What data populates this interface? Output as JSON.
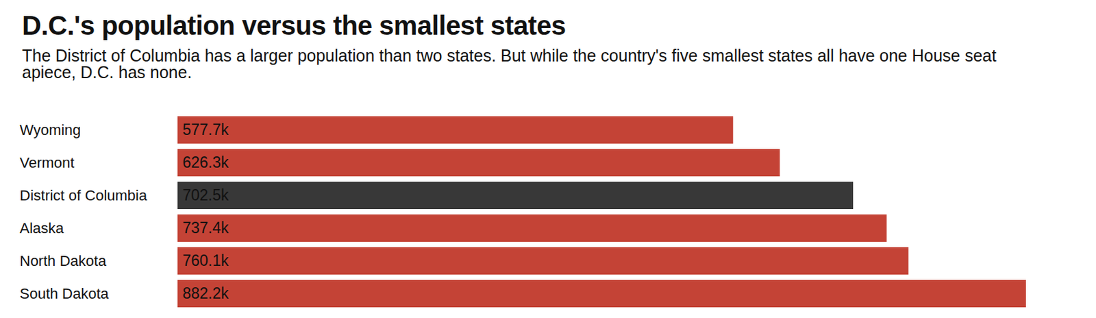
{
  "chart_data": {
    "type": "bar",
    "orientation": "horizontal",
    "title": "D.C.'s population versus the smallest states",
    "subtitle": "The District of Columbia has a larger population than two states. But while the country's five smallest states all have one House seat apiece, D.C. has none.",
    "categories": [
      "Wyoming",
      "Vermont",
      "District of Columbia",
      "Alaska",
      "North Dakota",
      "South Dakota"
    ],
    "values": [
      577.7,
      626.3,
      702.5,
      737.4,
      760.1,
      882.2
    ],
    "value_labels": [
      "577.7k",
      "626.3k",
      "702.5k",
      "737.4k",
      "760.1k",
      "882.2k"
    ],
    "colors": [
      "#c44336",
      "#c44336",
      "#383838",
      "#c44336",
      "#c44336",
      "#c44336"
    ],
    "xlim": [
      0,
      882.2
    ],
    "data_labels": true,
    "tick_labels": "y",
    "grid": false
  }
}
